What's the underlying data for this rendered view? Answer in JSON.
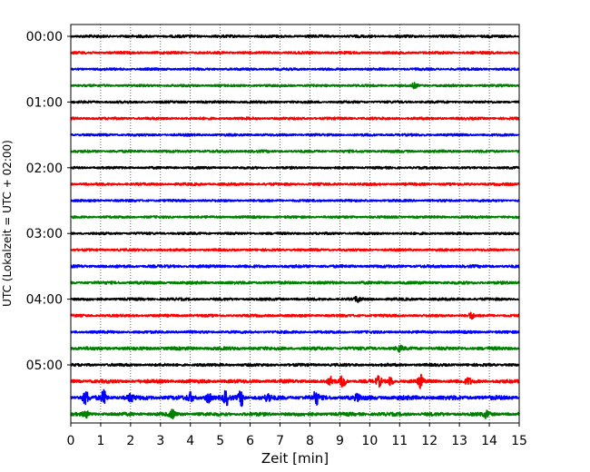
{
  "chart_data": {
    "type": "line",
    "title": "",
    "xlabel": "Zeit  [min]",
    "ylabel": "UTC (Lokalzeit = UTC + 02:00)",
    "xlim": [
      0,
      15
    ],
    "x_ticks": [
      0,
      1,
      2,
      3,
      4,
      5,
      6,
      7,
      8,
      9,
      10,
      11,
      12,
      13,
      14,
      15
    ],
    "grid": "vertical dotted",
    "y_tick_labels": [
      "00:00",
      "01:00",
      "02:00",
      "03:00",
      "04:00",
      "05:00"
    ],
    "trace_interval_minutes": 15,
    "trace_colors": [
      "#000000",
      "#ff0000",
      "#0000ff",
      "#008000"
    ],
    "traces": [
      {
        "start": "00:00",
        "amplitude": 0.55,
        "events": []
      },
      {
        "start": "00:15",
        "amplitude": 0.55,
        "events": []
      },
      {
        "start": "00:30",
        "amplitude": 0.5,
        "events": []
      },
      {
        "start": "00:45",
        "amplitude": 0.5,
        "events": [
          {
            "t": 11.5,
            "amp": 1.2
          }
        ]
      },
      {
        "start": "01:00",
        "amplitude": 0.5,
        "events": []
      },
      {
        "start": "01:15",
        "amplitude": 0.55,
        "events": []
      },
      {
        "start": "01:30",
        "amplitude": 0.5,
        "events": []
      },
      {
        "start": "01:45",
        "amplitude": 0.55,
        "events": []
      },
      {
        "start": "02:00",
        "amplitude": 0.5,
        "events": []
      },
      {
        "start": "02:15",
        "amplitude": 0.55,
        "events": []
      },
      {
        "start": "02:30",
        "amplitude": 0.5,
        "events": []
      },
      {
        "start": "02:45",
        "amplitude": 0.5,
        "events": []
      },
      {
        "start": "03:00",
        "amplitude": 0.5,
        "events": []
      },
      {
        "start": "03:15",
        "amplitude": 0.5,
        "events": []
      },
      {
        "start": "03:30",
        "amplitude": 0.6,
        "events": []
      },
      {
        "start": "03:45",
        "amplitude": 0.6,
        "events": []
      },
      {
        "start": "04:00",
        "amplitude": 0.55,
        "events": [
          {
            "t": 9.6,
            "amp": 1.6
          }
        ]
      },
      {
        "start": "04:15",
        "amplitude": 0.55,
        "events": [
          {
            "t": 13.4,
            "amp": 1.5
          }
        ]
      },
      {
        "start": "04:30",
        "amplitude": 0.55,
        "events": []
      },
      {
        "start": "04:45",
        "amplitude": 0.7,
        "events": [
          {
            "t": 11.0,
            "amp": 1.4
          }
        ]
      },
      {
        "start": "05:00",
        "amplitude": 0.6,
        "events": []
      },
      {
        "start": "05:15",
        "amplitude": 0.75,
        "events": [
          {
            "t": 8.7,
            "amp": 2.0
          },
          {
            "t": 9.1,
            "amp": 3.2
          },
          {
            "t": 10.3,
            "amp": 2.4
          },
          {
            "t": 10.7,
            "amp": 2.0
          },
          {
            "t": 11.7,
            "amp": 3.2
          },
          {
            "t": 13.3,
            "amp": 1.6
          }
        ]
      },
      {
        "start": "05:30",
        "amplitude": 0.9,
        "events": [
          {
            "t": 0.5,
            "amp": 3.2
          },
          {
            "t": 1.1,
            "amp": 3.4
          },
          {
            "t": 2.0,
            "amp": 1.8
          },
          {
            "t": 4.0,
            "amp": 2.2
          },
          {
            "t": 4.6,
            "amp": 2.6
          },
          {
            "t": 5.2,
            "amp": 3.6
          },
          {
            "t": 5.7,
            "amp": 4.0
          },
          {
            "t": 6.6,
            "amp": 2.0
          },
          {
            "t": 8.2,
            "amp": 3.6
          },
          {
            "t": 9.6,
            "amp": 1.6
          }
        ]
      },
      {
        "start": "05:45",
        "amplitude": 0.75,
        "events": [
          {
            "t": 0.5,
            "amp": 1.6
          },
          {
            "t": 3.4,
            "amp": 2.0
          },
          {
            "t": 13.9,
            "amp": 1.6
          }
        ]
      }
    ]
  }
}
